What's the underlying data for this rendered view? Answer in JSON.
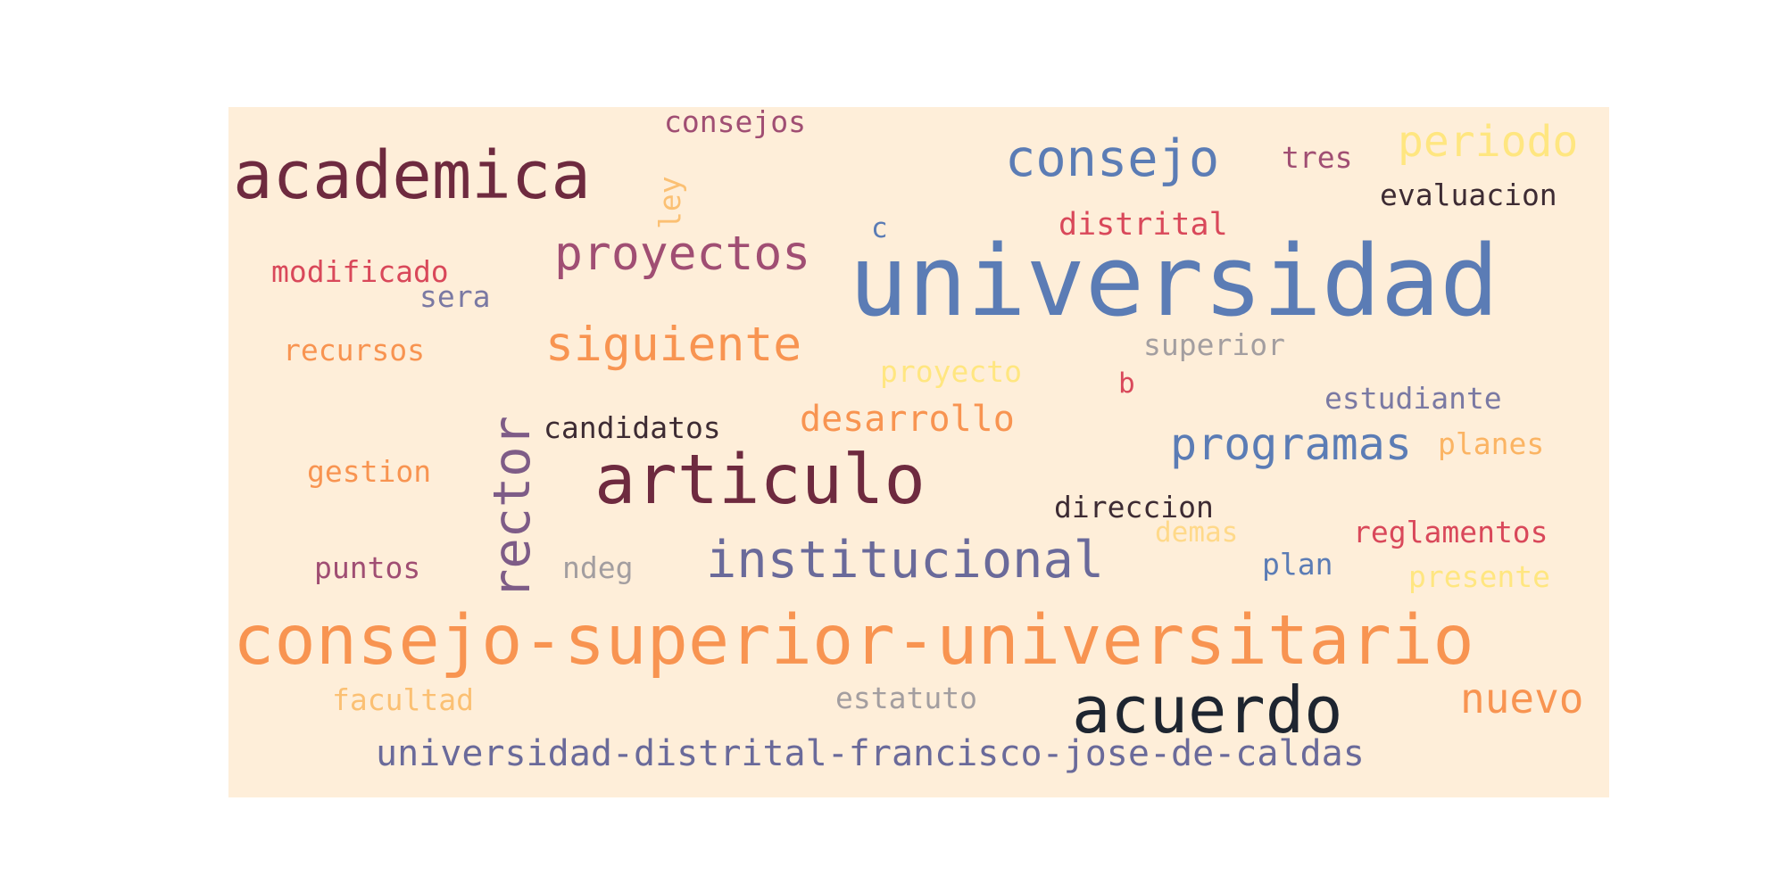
{
  "words": {
    "universidad": {
      "text": "universidad",
      "color": "#5b7cb5"
    },
    "consejo_superior_universitario": {
      "text": "consejo-superior-universitario",
      "color": "#f89451"
    },
    "academica": {
      "text": "academica",
      "color": "#6e2a3f"
    },
    "articulo": {
      "text": "articulo",
      "color": "#6e2a3f"
    },
    "acuerdo": {
      "text": "acuerdo",
      "color": "#1e2530"
    },
    "rector": {
      "text": "rector",
      "color": "#7e5c87"
    },
    "institucional": {
      "text": "institucional",
      "color": "#6a6a9a"
    },
    "universidad_distrital": {
      "text": "universidad-distrital-francisco-jose-de-caldas",
      "color": "#6a6a9a"
    },
    "consejo": {
      "text": "consejo",
      "color": "#5b7cb5"
    },
    "proyectos": {
      "text": "proyectos",
      "color": "#a04e73"
    },
    "siguiente": {
      "text": "siguiente",
      "color": "#f89451"
    },
    "programas": {
      "text": "programas",
      "color": "#5b7cb5"
    },
    "periodo": {
      "text": "periodo",
      "color": "#ffe680"
    },
    "nuevo": {
      "text": "nuevo",
      "color": "#f89451"
    },
    "desarrollo": {
      "text": "desarrollo",
      "color": "#f89451"
    },
    "distrital": {
      "text": "distrital",
      "color": "#d9485a"
    },
    "evaluacion": {
      "text": "evaluacion",
      "color": "#3d2b33"
    },
    "tres": {
      "text": "tres",
      "color": "#a04e73"
    },
    "consejos": {
      "text": "consejos",
      "color": "#a04e73"
    },
    "ley": {
      "text": "ley",
      "color": "#fbc073"
    },
    "c": {
      "text": "c",
      "color": "#5b7cb5"
    },
    "modificado": {
      "text": "modificado",
      "color": "#d9485a"
    },
    "sera": {
      "text": "sera",
      "color": "#7a79a3"
    },
    "recursos": {
      "text": "recursos",
      "color": "#f89451"
    },
    "superior": {
      "text": "superior",
      "color": "#a39ea0"
    },
    "proyecto": {
      "text": "proyecto",
      "color": "#ffe680"
    },
    "b": {
      "text": "b",
      "color": "#d9485a"
    },
    "estudiante": {
      "text": "estudiante",
      "color": "#7a79a3"
    },
    "candidatos": {
      "text": "candidatos",
      "color": "#3d2b33"
    },
    "planes": {
      "text": "planes",
      "color": "#fbb463"
    },
    "gestion": {
      "text": "gestion",
      "color": "#f89451"
    },
    "direccion": {
      "text": "direccion",
      "color": "#3d2b33"
    },
    "demas": {
      "text": "demas",
      "color": "#ffd98a"
    },
    "reglamentos": {
      "text": "reglamentos",
      "color": "#d9485a"
    },
    "puntos": {
      "text": "puntos",
      "color": "#a04e73"
    },
    "ndeg": {
      "text": "ndeg",
      "color": "#a39ea0"
    },
    "plan": {
      "text": "plan",
      "color": "#5b7cb5"
    },
    "presente": {
      "text": "presente",
      "color": "#ffe680"
    },
    "facultad": {
      "text": "facultad",
      "color": "#fbc073"
    },
    "estatuto": {
      "text": "estatuto",
      "color": "#a39ea0"
    }
  }
}
